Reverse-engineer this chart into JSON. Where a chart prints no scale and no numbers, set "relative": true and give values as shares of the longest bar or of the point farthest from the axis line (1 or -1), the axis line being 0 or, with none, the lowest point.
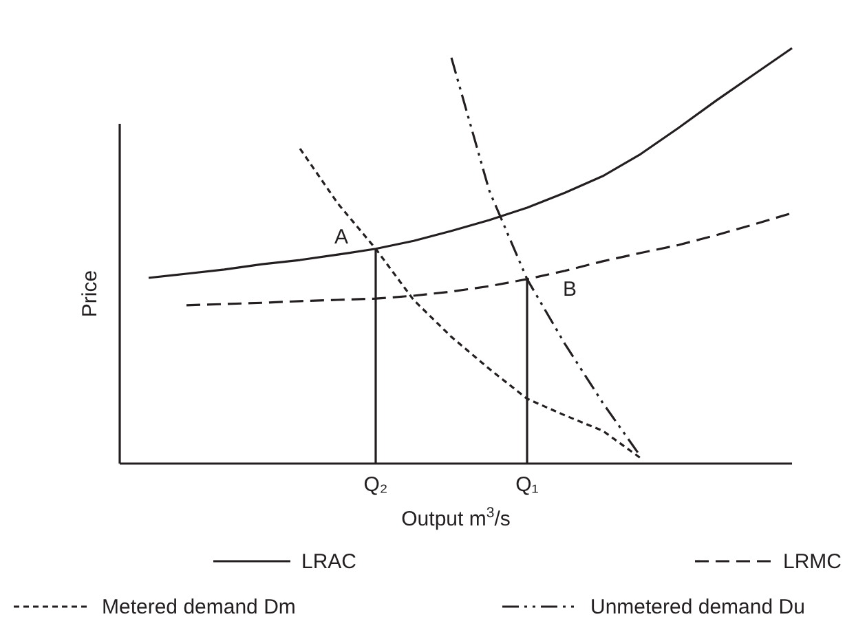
{
  "chart_data": {
    "type": "line",
    "relative": true,
    "xlabel": "Output m$^{3}$/s",
    "ylabel": "Price",
    "legend": "bottom",
    "marker": "none",
    "categories": [
      null,
      null,
      null,
      null,
      null,
      null,
      "Q₂",
      null,
      null,
      null,
      "Q₁",
      null,
      null,
      null,
      null,
      null,
      null,
      null
    ],
    "series": [
      {
        "name": "LRAC",
        "color": "#231f20",
        "line_style": "solid",
        "values": [
          0.447,
          0.457,
          0.467,
          0.48,
          0.49,
          0.503,
          0.517,
          0.536,
          0.56,
          0.586,
          0.616,
          0.652,
          0.692,
          0.745,
          0.808,
          0.874,
          0.937,
          1
        ]
      },
      {
        "name": "LRMC",
        "color": "#231f20",
        "line_style": "dashed",
        "values": [
          null,
          0.381,
          0.384,
          0.387,
          0.391,
          0.394,
          0.397,
          0.404,
          0.414,
          0.427,
          0.444,
          0.464,
          0.487,
          0.507,
          0.526,
          0.55,
          0.576,
          0.603
        ]
      },
      {
        "name": "Metered demand Dm",
        "color": "#231f20",
        "line_style": "dotted",
        "values": [
          null,
          null,
          null,
          null,
          0.758,
          0.626,
          0.517,
          0.394,
          0.305,
          0.228,
          0.156,
          0.116,
          0.079,
          0.013,
          null,
          null,
          null,
          null
        ]
      },
      {
        "name": "Unmetered demand Du",
        "color": "#231f20",
        "line_style": "dashdotdot",
        "values": [
          null,
          null,
          null,
          null,
          null,
          null,
          null,
          null,
          0.977,
          0.657,
          0.444,
          0.288,
          0.146,
          0.017,
          null,
          null,
          null,
          null
        ]
      },
      {
        "type": "bar",
        "color": "#231f20",
        "values": [
          null,
          null,
          null,
          null,
          null,
          null,
          0.517,
          null,
          null,
          null,
          0.444,
          null,
          null,
          null,
          null,
          null,
          null,
          null
        ]
      }
    ],
    "annotations": [
      {
        "text": "A",
        "x": "Q₂",
        "y": 0.517
      },
      {
        "text": "B",
        "x": "Q₁",
        "y": 0.444
      }
    ]
  }
}
